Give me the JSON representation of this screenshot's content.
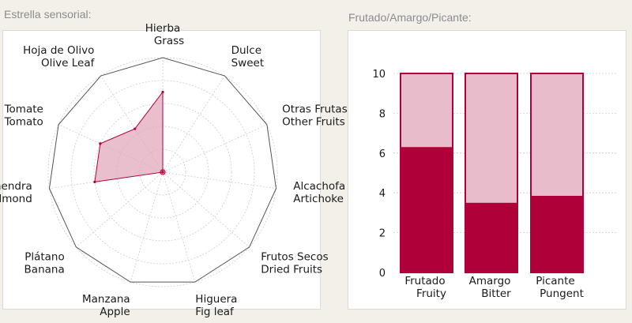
{
  "radar_title": "Estrella sensorial:",
  "bar_title": "Frutado/Amargo/Picante:",
  "colors": {
    "accent": "#b0003a",
    "accent_light": "#e9bccb",
    "radar_fill": "#e2a9bd",
    "grid": "#cccccc",
    "frame": "#555555"
  },
  "chart_data": [
    {
      "type": "radar",
      "title": "Estrella sensorial:",
      "axes": [
        {
          "es": "Hierba",
          "en": "Grass"
        },
        {
          "es": "Dulce",
          "en": "Sweet"
        },
        {
          "es": "Otras Frutas",
          "en": "Other Fruits"
        },
        {
          "es": "Alcachofa",
          "en": "Artichoke"
        },
        {
          "es": "Frutos Secos",
          "en": "Dried Fruits"
        },
        {
          "es": "Higuera",
          "en": "Fig leaf"
        },
        {
          "es": "Manzana",
          "en": "Apple"
        },
        {
          "es": "Plátano",
          "en": "Banana"
        },
        {
          "es": "Almendra",
          "en": "Almond"
        },
        {
          "es": "Tomate",
          "en": "Tomato"
        },
        {
          "es": "Hoja de Olivo",
          "en": "Olive Leaf"
        }
      ],
      "values": [
        7,
        0,
        0,
        0,
        0,
        0,
        0,
        0,
        6,
        6,
        4.5
      ],
      "rmax": 10,
      "grid_rings": 5
    },
    {
      "type": "bar",
      "title": "Frutado/Amargo/Picante:",
      "categories": [
        {
          "es": "Frutado",
          "en": "Fruity"
        },
        {
          "es": "Amargo",
          "en": "Bitter"
        },
        {
          "es": "Picante",
          "en": "Pungent"
        }
      ],
      "values": [
        6.3,
        3.5,
        3.85
      ],
      "max": 10,
      "ylim": [
        0,
        10
      ],
      "yticks": [
        0,
        2,
        4,
        6,
        8,
        10
      ]
    }
  ]
}
